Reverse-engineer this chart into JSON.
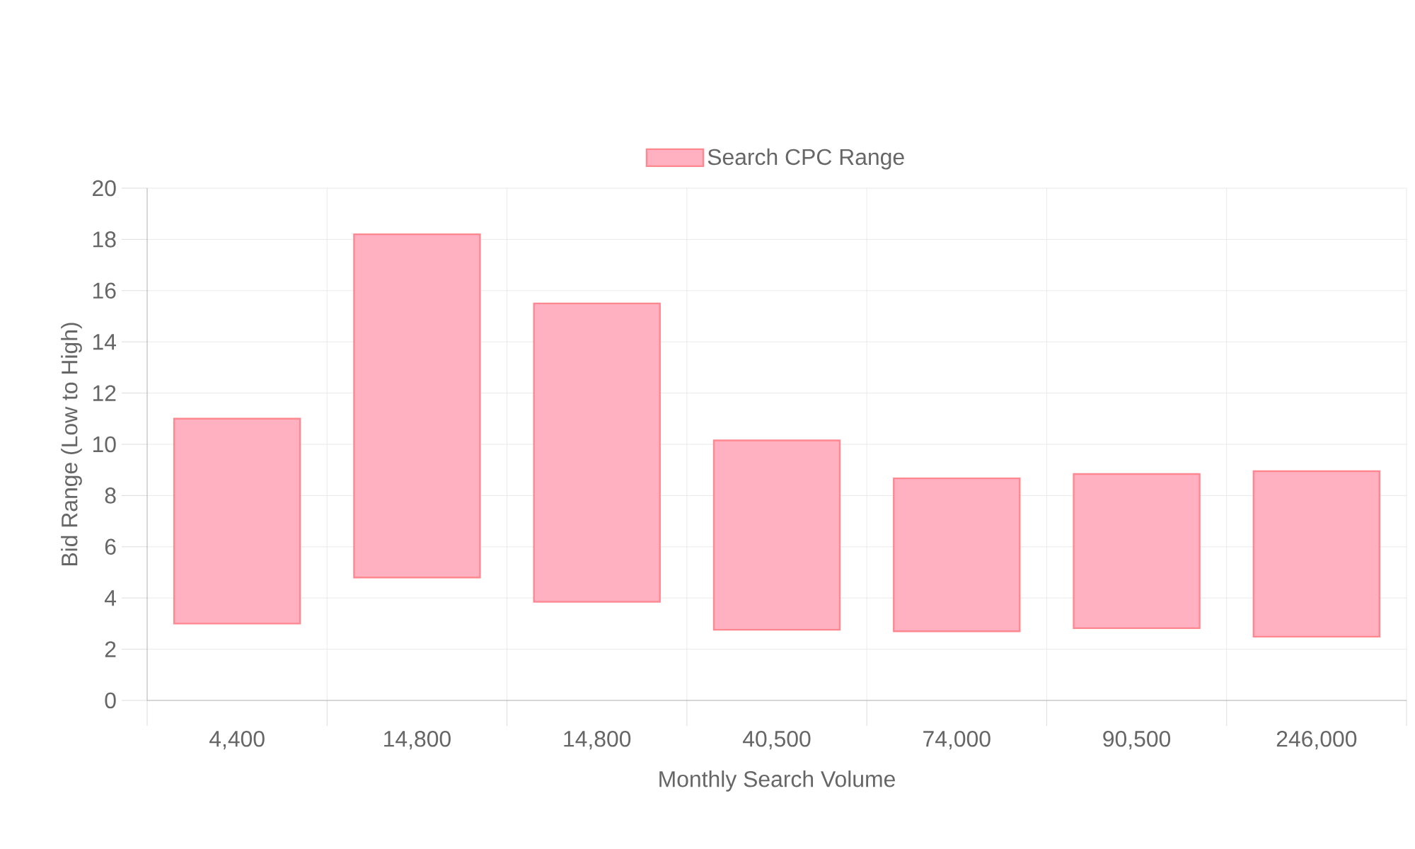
{
  "chart_data": {
    "type": "bar",
    "xlabel": "Monthly Search Volume",
    "ylabel": "Bid Range (Low to High)",
    "categories": [
      "4,400",
      "14,800",
      "14,800",
      "40,500",
      "74,000",
      "90,500",
      "246,000"
    ],
    "series": [
      {
        "name": "Search CPC Range",
        "color": "#ffb1c1",
        "base": [
          3,
          4.8,
          3.85,
          2.76,
          2.7,
          2.82,
          2.49
        ],
        "values": [
          8,
          13.4,
          11.65,
          7.39,
          5.97,
          6.02,
          6.46
        ]
      }
    ],
    "ylim": [
      0,
      20
    ],
    "yticks": [
      0,
      2,
      4,
      6,
      8,
      10,
      12,
      14,
      16,
      18,
      20
    ],
    "grid": true,
    "legend": "top"
  }
}
